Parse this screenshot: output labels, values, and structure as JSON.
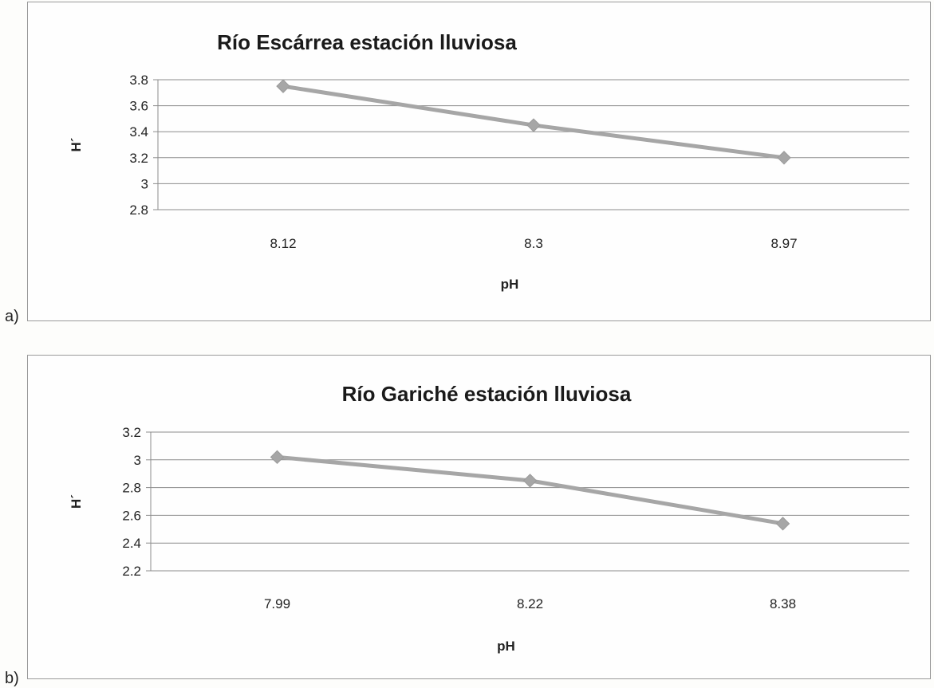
{
  "panel_labels": [
    "a)",
    "b)"
  ],
  "chart_data": [
    {
      "type": "line",
      "title": "Río Escárrea estación lluviosa",
      "xlabel": "pH",
      "ylabel": "H´",
      "categories": [
        "8.12",
        "8.3",
        "8.97"
      ],
      "series": [
        {
          "values": [
            3.75,
            3.45,
            3.2
          ]
        }
      ],
      "ylim": [
        2.8,
        3.8
      ],
      "yticks": [
        "2.8",
        "3",
        "3.2",
        "3.4",
        "3.6",
        "3.8"
      ],
      "grid": true,
      "marker": "diamond",
      "line_color": "#a6a6a6"
    },
    {
      "type": "line",
      "title": "Río Gariché estación lluviosa",
      "xlabel": "pH",
      "ylabel": "H´",
      "categories": [
        "7.99",
        "8.22",
        "8.38"
      ],
      "series": [
        {
          "values": [
            3.02,
            2.85,
            2.54
          ]
        }
      ],
      "ylim": [
        2.2,
        3.2
      ],
      "yticks": [
        "2.2",
        "2.4",
        "2.6",
        "2.8",
        "3",
        "3.2"
      ],
      "grid": true,
      "marker": "diamond",
      "line_color": "#a6a6a6"
    }
  ]
}
